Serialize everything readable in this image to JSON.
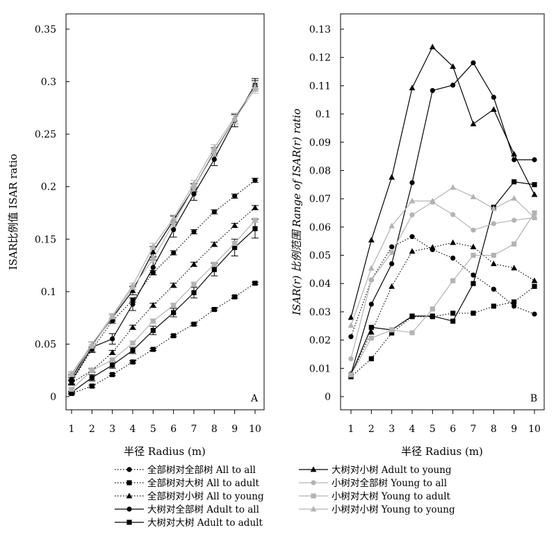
{
  "chart_data": [
    {
      "type": "line",
      "panel_label": "A",
      "title": "",
      "xlabel": "半径 Radius (m)",
      "ylabel": "ISAR比例值 ISAR ratio",
      "x": [
        1,
        2,
        3,
        4,
        5,
        6,
        7,
        8,
        9,
        10
      ],
      "x_ticks": [
        "1",
        "2",
        "3",
        "4",
        "5",
        "6",
        "7",
        "8",
        "9",
        "10"
      ],
      "ylim": [
        0,
        0.35
      ],
      "y_ticks": [
        "0",
        "0.05",
        "0.1",
        "0.15",
        "0.2",
        "0.25",
        "0.3",
        "0.35"
      ],
      "series": [
        {
          "name": "全部树对全部树 All to all",
          "values": [
            0.014,
            0.045,
            0.072,
            0.092,
            0.118,
            0.137,
            0.157,
            0.176,
            0.191,
            0.206
          ],
          "error": [
            0.002,
            0.002,
            0.002,
            0.002,
            0.002,
            0.002,
            0.002,
            0.002,
            0.002,
            0.002
          ]
        },
        {
          "name": "全部树对大树 All to adult",
          "values": [
            0.003,
            0.01,
            0.021,
            0.033,
            0.045,
            0.058,
            0.069,
            0.083,
            0.095,
            0.108
          ],
          "error": [
            0.001,
            0.001,
            0.001,
            0.001,
            0.001,
            0.001,
            0.001,
            0.001,
            0.001,
            0.001
          ]
        },
        {
          "name": "全部树对小树 All to young",
          "values": [
            0.013,
            0.025,
            0.042,
            0.066,
            0.087,
            0.106,
            0.126,
            0.145,
            0.163,
            0.18
          ],
          "error": [
            0.002,
            0.002,
            0.002,
            0.002,
            0.002,
            0.002,
            0.002,
            0.002,
            0.002,
            0.002
          ]
        },
        {
          "name": "大树对全部树 Adult to all",
          "values": [
            0.015,
            0.047,
            0.055,
            0.088,
            0.123,
            0.159,
            0.193,
            0.226,
            0.263,
            0.297
          ],
          "error": [
            0.003,
            0.005,
            0.005,
            0.006,
            0.007,
            0.007,
            0.006,
            0.006,
            0.006,
            0.006
          ]
        },
        {
          "name": "大树对大树 Adult to adult",
          "values": [
            0.004,
            0.018,
            0.03,
            0.044,
            0.063,
            0.08,
            0.099,
            0.121,
            0.142,
            0.16
          ],
          "error": [
            0.001,
            0.003,
            0.003,
            0.003,
            0.004,
            0.004,
            0.005,
            0.006,
            0.008,
            0.009
          ]
        },
        {
          "name": "大树对小树 Adult to young",
          "values": [
            0.018,
            0.049,
            0.075,
            0.101,
            0.138,
            0.168,
            0.199,
            0.233,
            0.264,
            0.297
          ],
          "error": [
            0.003,
            0.003,
            0.003,
            0.004,
            0.005,
            0.004,
            0.004,
            0.004,
            0.004,
            0.004
          ]
        },
        {
          "name": "小树对全部树 Young to all",
          "values": [
            0.021,
            0.048,
            0.076,
            0.104,
            0.131,
            0.165,
            0.199,
            0.232,
            0.264,
            0.293
          ],
          "error": [
            0.002,
            0.002,
            0.002,
            0.002,
            0.003,
            0.003,
            0.003,
            0.003,
            0.004,
            0.004
          ]
        },
        {
          "name": "小树对大树 Young to adult",
          "values": [
            0.007,
            0.025,
            0.035,
            0.051,
            0.072,
            0.087,
            0.107,
            0.126,
            0.146,
            0.168
          ],
          "error": [
            0.001,
            0.001,
            0.001,
            0.002,
            0.002,
            0.002,
            0.002,
            0.002,
            0.002,
            0.002
          ]
        },
        {
          "name": "小树对小树 Young to young",
          "values": [
            0.022,
            0.05,
            0.077,
            0.106,
            0.143,
            0.17,
            0.203,
            0.237,
            0.266,
            0.295
          ],
          "error": [
            0.002,
            0.002,
            0.002,
            0.002,
            0.003,
            0.003,
            0.003,
            0.003,
            0.004,
            0.004
          ]
        }
      ]
    },
    {
      "type": "line",
      "panel_label": "B",
      "title": "",
      "xlabel": "半径 Radius (m)",
      "ylabel": "ISAR(r) 比例范围 Range of ISAR(r) ratio",
      "x": [
        1,
        2,
        3,
        4,
        5,
        6,
        7,
        8,
        9,
        10
      ],
      "x_ticks": [
        "1",
        "2",
        "3",
        "4",
        "5",
        "6",
        "7",
        "8",
        "9",
        "10"
      ],
      "ylim": [
        0,
        0.13
      ],
      "y_ticks": [
        "0",
        "0.01",
        "0.02",
        "0.03",
        "0.04",
        "0.05",
        "0.06",
        "0.07",
        "0.08",
        "0.09",
        "0.1",
        "0.11",
        "0.12",
        "0.13"
      ],
      "series": [
        {
          "name": "全部树对全部树 All to all",
          "values": [
            0.0212,
            0.0413,
            0.053,
            0.0566,
            0.052,
            0.049,
            0.043,
            0.038,
            0.032,
            0.0292
          ]
        },
        {
          "name": "全部树对大树 All to adult",
          "values": [
            0.007,
            0.0134,
            0.0225,
            0.0283,
            0.0283,
            0.0295,
            0.0295,
            0.032,
            0.0335,
            0.039
          ]
        },
        {
          "name": "全部树对小树 All to young",
          "values": [
            0.0077,
            0.0228,
            0.039,
            0.0514,
            0.0528,
            0.0545,
            0.053,
            0.047,
            0.0455,
            0.041
          ]
        },
        {
          "name": "大树对全部树 Adult to all",
          "values": [
            0.008,
            0.0327,
            0.047,
            0.0757,
            0.1083,
            0.1102,
            0.1181,
            0.1059,
            0.0838,
            0.0838
          ]
        },
        {
          "name": "大树对大树 Adult to adult",
          "values": [
            0.0077,
            0.0245,
            0.0236,
            0.0285,
            0.0285,
            0.0267,
            0.04,
            0.067,
            0.076,
            0.075
          ]
        },
        {
          "name": "大树对小树 Adult to young",
          "values": [
            0.028,
            0.0554,
            0.0776,
            0.1092,
            0.1237,
            0.1168,
            0.0965,
            0.1016,
            0.0858,
            0.0715
          ]
        },
        {
          "name": "小树对全部树 Young to all",
          "values": [
            0.0134,
            0.0413,
            0.051,
            0.0643,
            0.0688,
            0.0644,
            0.0589,
            0.0612,
            0.0624,
            0.0633
          ]
        },
        {
          "name": "小树对大树 Young to adult",
          "values": [
            0.0077,
            0.0207,
            0.0236,
            0.0226,
            0.031,
            0.041,
            0.05,
            0.05,
            0.054,
            0.065
          ]
        },
        {
          "name": "小树对小树 Young to young",
          "values": [
            0.0252,
            0.0454,
            0.0604,
            0.0692,
            0.0692,
            0.074,
            0.0707,
            0.0665,
            0.0702,
            0.0633
          ]
        }
      ]
    }
  ],
  "legend": {
    "placement": "bottom",
    "entries": [
      {
        "label": "全部树对全部树 All to all",
        "line": "dotted",
        "marker": "circle",
        "color": "#000000"
      },
      {
        "label": "全部树对大树 All to adult",
        "line": "dotted",
        "marker": "square",
        "color": "#000000"
      },
      {
        "label": "全部树对小树 All to young",
        "line": "dotted",
        "marker": "triangle",
        "color": "#000000"
      },
      {
        "label": "大树对全部树 Adult to all",
        "line": "solid",
        "marker": "circle",
        "color": "#000000"
      },
      {
        "label": "大树对大树 Adult to adult",
        "line": "solid",
        "marker": "square",
        "color": "#000000"
      },
      {
        "label": "大树对小树 Adult to young",
        "line": "solid",
        "marker": "triangle",
        "color": "#000000"
      },
      {
        "label": "小树对全部树 Young to all",
        "line": "solid",
        "marker": "circle",
        "color": "#b3b3b3"
      },
      {
        "label": "小树对大树 Young to adult",
        "line": "solid",
        "marker": "square",
        "color": "#b3b3b3"
      },
      {
        "label": "小树对小树 Young to young",
        "line": "solid",
        "marker": "triangle",
        "color": "#b3b3b3"
      }
    ]
  }
}
